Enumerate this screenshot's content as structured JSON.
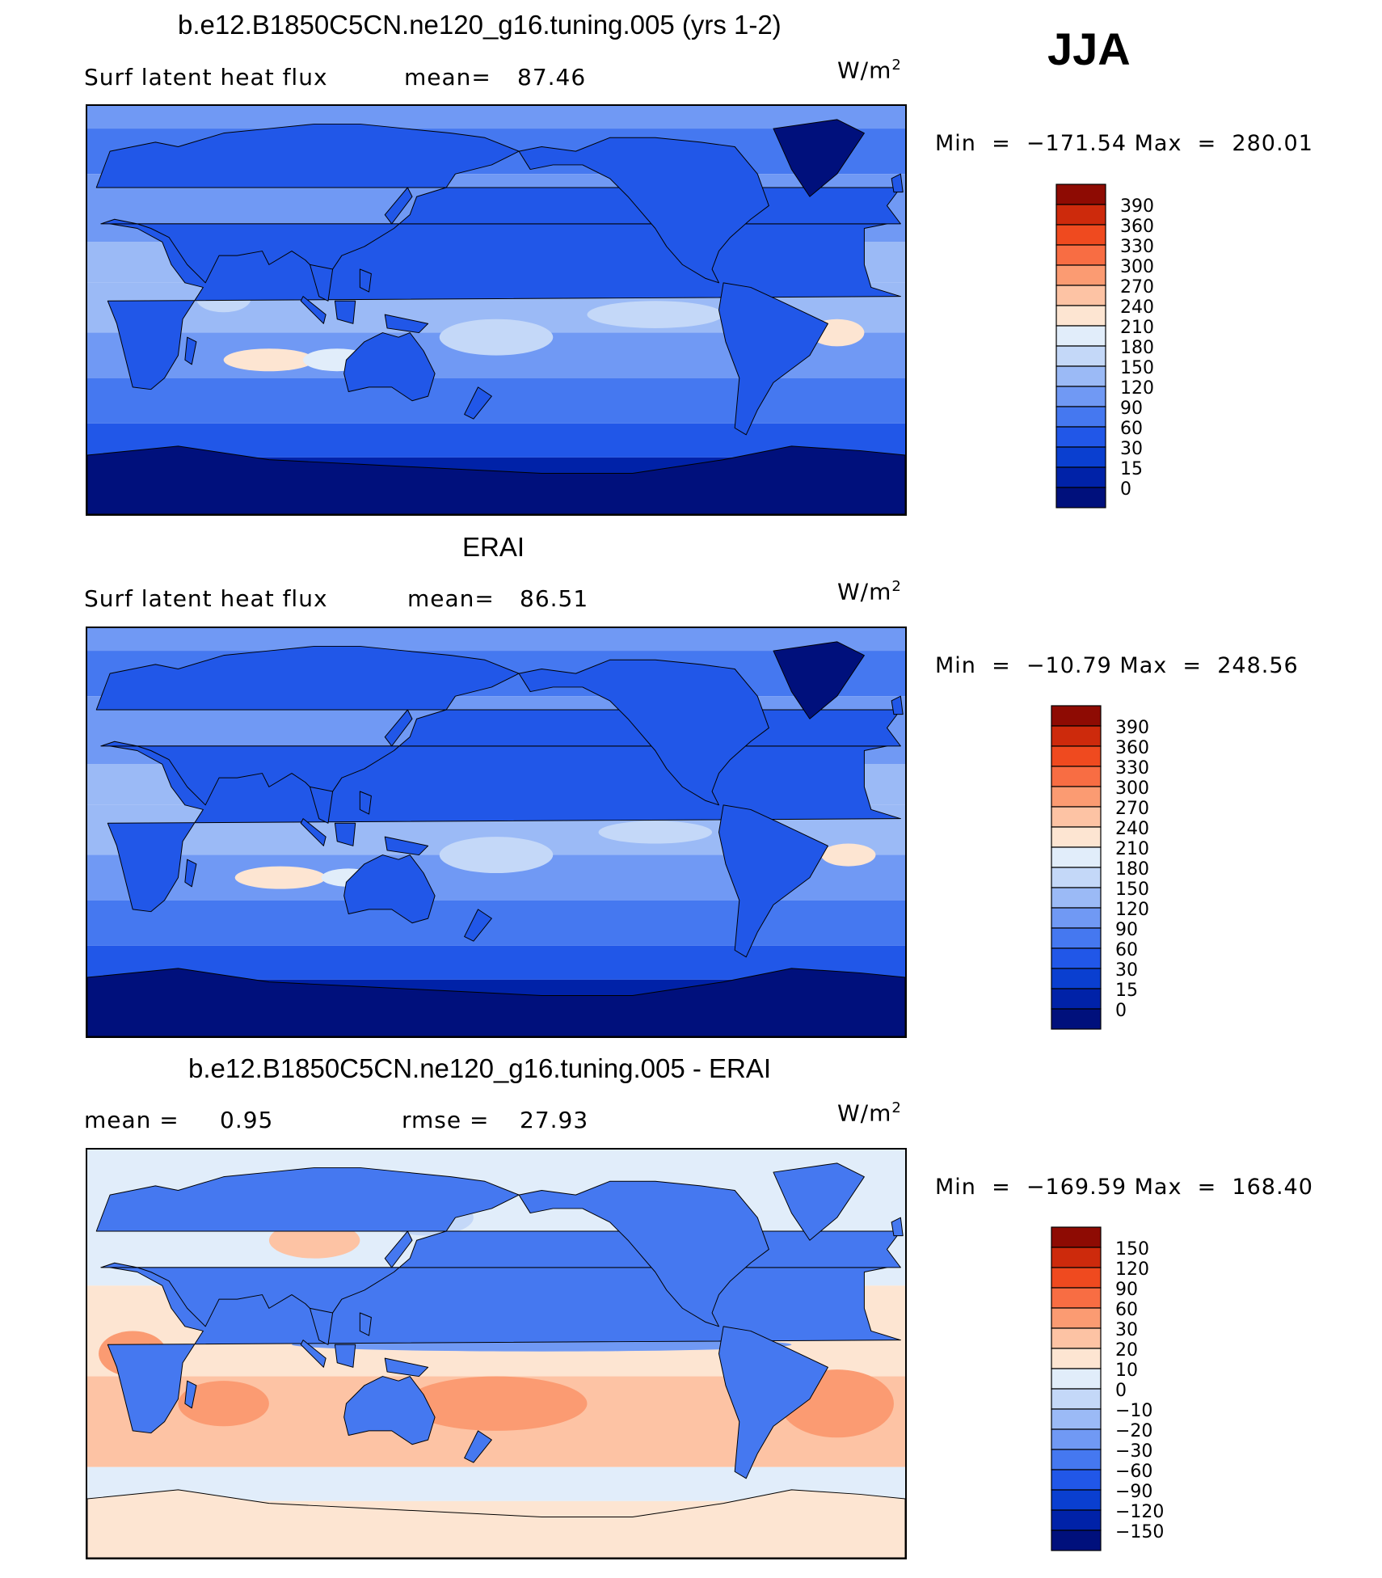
{
  "season": "JJA",
  "units": "W/m",
  "units_exp": "2",
  "panels": [
    {
      "title": "b.e12.B1850C5CN.ne120_g16.tuning.005 (yrs 1-2)",
      "field": "Surf latent heat flux",
      "stat1_label": "mean=",
      "stat1_value": "87.46",
      "min_label": "Min",
      "min_value": "−171.54",
      "max_label": "Max",
      "max_value": "280.01"
    },
    {
      "title": "ERAI",
      "field": "Surf latent heat flux",
      "stat1_label": "mean=",
      "stat1_value": "86.51",
      "min_label": "Min",
      "min_value": "−10.79",
      "max_label": "Max",
      "max_value": "248.56"
    },
    {
      "title": "b.e12.B1850C5CN.ne120_g16.tuning.005 - ERAI",
      "stat1_label": "mean =",
      "stat1_value": "0.95",
      "stat2_label": "rmse =",
      "stat2_value": "27.93",
      "min_label": "Min",
      "min_value": "−169.59",
      "max_label": "Max",
      "max_value": "168.40"
    }
  ],
  "chart_data": [
    {
      "type": "heatmap",
      "title": "b.e12.B1850C5CN.ne120_g16.tuning.005 (yrs 1-2)",
      "variable": "Surf latent heat flux",
      "units": "W/m2",
      "mean": 87.46,
      "min": -171.54,
      "max": 280.01,
      "colorbar_levels": [
        "0",
        "15",
        "30",
        "60",
        "90",
        "120",
        "150",
        "180",
        "210",
        "240",
        "270",
        "300",
        "330",
        "360",
        "390"
      ],
      "colorbar_colors": [
        "#00107c",
        "#0022a8",
        "#0a3fd0",
        "#2157e8",
        "#4578f0",
        "#7099f4",
        "#9bbaf6",
        "#c4d8f8",
        "#e1edfa",
        "#fde5d2",
        "#fdc3a4",
        "#fb9b72",
        "#f86d43",
        "#ef4a1f",
        "#cd2a0c",
        "#8e0b03"
      ]
    },
    {
      "type": "heatmap",
      "title": "ERAI",
      "variable": "Surf latent heat flux",
      "units": "W/m2",
      "mean": 86.51,
      "min": -10.79,
      "max": 248.56,
      "colorbar_levels": [
        "0",
        "15",
        "30",
        "60",
        "90",
        "120",
        "150",
        "180",
        "210",
        "240",
        "270",
        "300",
        "330",
        "360",
        "390"
      ],
      "colorbar_colors": [
        "#00107c",
        "#0022a8",
        "#0a3fd0",
        "#2157e8",
        "#4578f0",
        "#7099f4",
        "#9bbaf6",
        "#c4d8f8",
        "#e1edfa",
        "#fde5d2",
        "#fdc3a4",
        "#fb9b72",
        "#f86d43",
        "#ef4a1f",
        "#cd2a0c",
        "#8e0b03"
      ]
    },
    {
      "type": "heatmap",
      "title": "b.e12.B1850C5CN.ne120_g16.tuning.005 - ERAI",
      "units": "W/m2",
      "mean": 0.95,
      "rmse": 27.93,
      "min": -169.59,
      "max": 168.4,
      "colorbar_levels": [
        "−150",
        "−120",
        "−90",
        "−60",
        "−30",
        "−20",
        "−10",
        "0",
        "10",
        "20",
        "30",
        "60",
        "90",
        "120",
        "150"
      ],
      "colorbar_colors": [
        "#00107c",
        "#0022a8",
        "#0a3fd0",
        "#2157e8",
        "#4578f0",
        "#7099f4",
        "#9bbaf6",
        "#c4d8f8",
        "#e1edfa",
        "#fde5d2",
        "#fdc3a4",
        "#fb9b72",
        "#f86d43",
        "#ef4a1f",
        "#cd2a0c",
        "#8e0b03"
      ]
    }
  ]
}
